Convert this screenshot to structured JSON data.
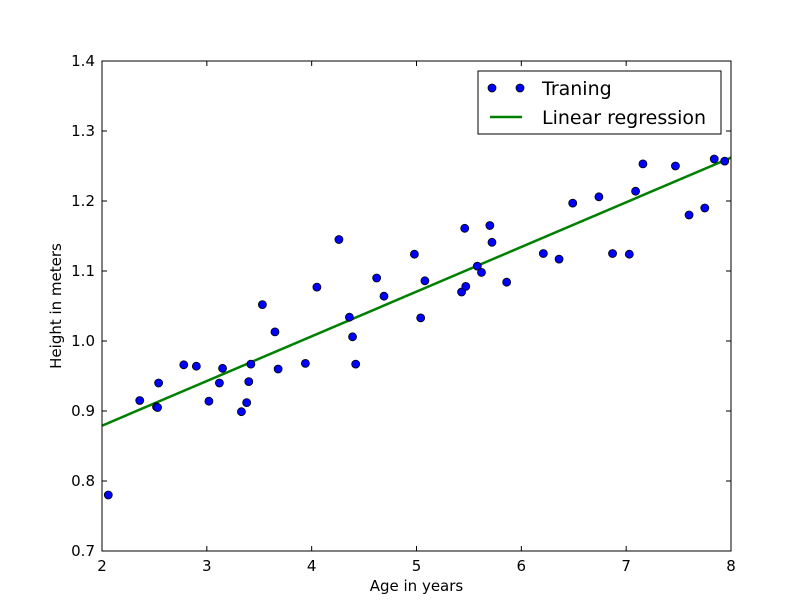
{
  "chart_data": {
    "type": "scatter",
    "title": "",
    "xlabel": "Age in years",
    "ylabel": "Height in meters",
    "xlim": [
      2,
      8
    ],
    "ylim": [
      0.7,
      1.4
    ],
    "x_ticks": [
      "2",
      "3",
      "4",
      "5",
      "6",
      "7",
      "8"
    ],
    "y_ticks": [
      "0.7",
      "0.8",
      "0.9",
      "1.0",
      "1.1",
      "1.2",
      "1.3",
      "1.4"
    ],
    "x_tick_values": [
      2,
      3,
      4,
      5,
      6,
      7,
      8
    ],
    "y_tick_values": [
      0.7,
      0.8,
      0.9,
      1.0,
      1.1,
      1.2,
      1.3,
      1.4
    ],
    "grid": false,
    "legend_position": "top-right",
    "series": [
      {
        "name": "Traning",
        "kind": "scatter",
        "color": "#0000ff",
        "points": [
          [
            2.06,
            0.78
          ],
          [
            2.36,
            0.915
          ],
          [
            2.52,
            0.906
          ],
          [
            2.53,
            0.905
          ],
          [
            2.54,
            0.94
          ],
          [
            2.78,
            0.966
          ],
          [
            2.9,
            0.964
          ],
          [
            3.02,
            0.914
          ],
          [
            3.12,
            0.94
          ],
          [
            3.15,
            0.961
          ],
          [
            3.33,
            0.899
          ],
          [
            3.38,
            0.912
          ],
          [
            3.4,
            0.942
          ],
          [
            3.42,
            0.967
          ],
          [
            3.53,
            1.052
          ],
          [
            3.65,
            1.013
          ],
          [
            3.68,
            0.96
          ],
          [
            3.94,
            0.968
          ],
          [
            4.05,
            1.077
          ],
          [
            4.26,
            1.145
          ],
          [
            4.36,
            1.034
          ],
          [
            4.39,
            1.006
          ],
          [
            4.42,
            0.967
          ],
          [
            4.62,
            1.09
          ],
          [
            4.69,
            1.064
          ],
          [
            4.98,
            1.124
          ],
          [
            5.04,
            1.033
          ],
          [
            5.08,
            1.086
          ],
          [
            5.43,
            1.07
          ],
          [
            5.46,
            1.161
          ],
          [
            5.47,
            1.078
          ],
          [
            5.58,
            1.107
          ],
          [
            5.62,
            1.098
          ],
          [
            5.7,
            1.165
          ],
          [
            5.72,
            1.141
          ],
          [
            5.86,
            1.084
          ],
          [
            6.21,
            1.125
          ],
          [
            6.36,
            1.117
          ],
          [
            6.49,
            1.197
          ],
          [
            6.74,
            1.206
          ],
          [
            6.87,
            1.125
          ],
          [
            7.03,
            1.124
          ],
          [
            7.09,
            1.214
          ],
          [
            7.16,
            1.253
          ],
          [
            7.47,
            1.25
          ],
          [
            7.6,
            1.18
          ],
          [
            7.75,
            1.19
          ],
          [
            7.84,
            1.26
          ],
          [
            7.94,
            1.257
          ]
        ]
      },
      {
        "name": "Linear regression",
        "kind": "line",
        "color": "#008000",
        "points": [
          [
            2.0,
            0.879
          ],
          [
            8.0,
            1.262
          ]
        ]
      }
    ]
  }
}
